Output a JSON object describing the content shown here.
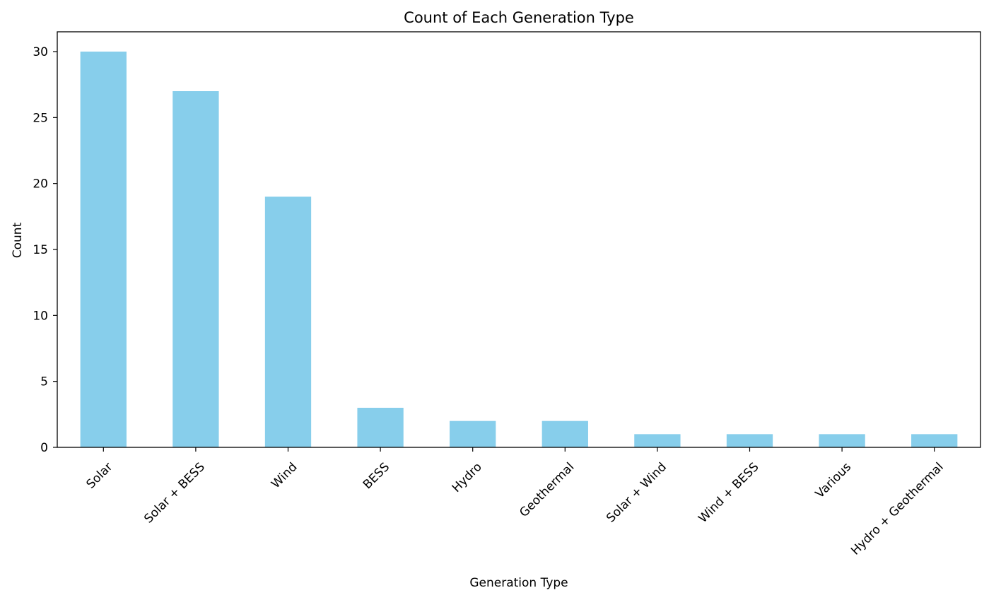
{
  "chart_data": {
    "type": "bar",
    "title": "Count of Each Generation Type",
    "xlabel": "Generation Type",
    "ylabel": "Count",
    "categories": [
      "Solar",
      "Solar + BESS",
      "Wind",
      "BESS",
      "Hydro",
      "Geothermal",
      "Solar + Wind",
      "Wind + BESS",
      "Various",
      "Hydro + Geothermal"
    ],
    "values": [
      30,
      27,
      19,
      3,
      2,
      2,
      1,
      1,
      1,
      1
    ],
    "ylim": [
      0,
      31.5
    ],
    "yticks": [
      0,
      5,
      10,
      15,
      20,
      25,
      30
    ],
    "bar_color": "#87CEEB",
    "grid": false,
    "legend": "none"
  }
}
